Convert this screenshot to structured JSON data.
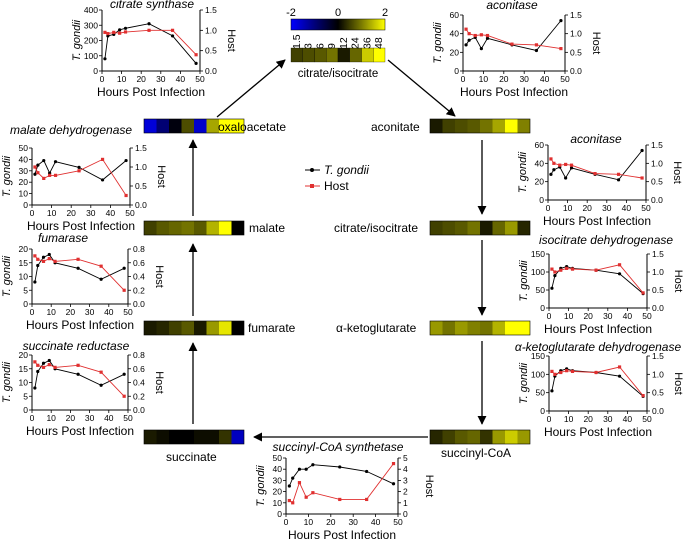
{
  "colors": {
    "tg": "#000000",
    "host": "#e03030",
    "axis": "#000000"
  },
  "colorbar": {
    "tick_labels": [
      "-2",
      "0",
      "2"
    ],
    "range": [
      -2,
      2
    ],
    "hours": [
      "1.5",
      "3",
      "6",
      "9",
      "12",
      "24",
      "36",
      "48"
    ],
    "title": "citrate/isocitrate"
  },
  "legend": {
    "tg": "T. gondii",
    "host": "Host"
  },
  "common": {
    "xlabel": "Hours Post Infection",
    "ylabel_left": "T. gondii",
    "ylabel_right": "Host"
  },
  "metabolites": [
    {
      "id": "oxaloacetate",
      "label": "oxaloacetate",
      "values": [
        -1.7,
        -0.9,
        -0.1,
        0.6,
        -1.6,
        1.3,
        2.0,
        2.0
      ]
    },
    {
      "id": "aconitate",
      "label": "aconitate",
      "values": [
        0.2,
        0.5,
        0.6,
        0.7,
        0.9,
        1.3,
        2.0,
        1.0
      ]
    },
    {
      "id": "citrate-isocitrate",
      "label": "citrate/isocitrate",
      "values": [
        0.5,
        0.6,
        0.7,
        0.9,
        0.2,
        0.8,
        1.2,
        0.3
      ]
    },
    {
      "id": "malate",
      "label": "malate",
      "values": [
        0.5,
        0.7,
        0.8,
        0.9,
        0.7,
        1.4,
        2.0,
        0.0
      ]
    },
    {
      "id": "alpha-ketoglutarate",
      "label": "α-ketoglutarate",
      "values": [
        1.2,
        0.9,
        1.2,
        1.0,
        0.9,
        1.4,
        2.0,
        2.0
      ]
    },
    {
      "id": "fumarate",
      "label": "fumarate",
      "values": [
        0.2,
        0.3,
        0.5,
        0.7,
        0.2,
        1.2,
        1.8,
        0.0
      ]
    },
    {
      "id": "succinyl-coa",
      "label": "succinyl-CoA",
      "values": [
        0.3,
        0.5,
        0.7,
        0.8,
        0.4,
        1.2,
        1.6,
        1.2
      ]
    },
    {
      "id": "succinate",
      "label": "succinate",
      "values": [
        0.2,
        0.1,
        0.0,
        0.0,
        0.1,
        0.1,
        0.4,
        -1.5
      ]
    }
  ],
  "chart_data": [
    {
      "id": "citrate-synthase",
      "type": "line",
      "title": "citrate synthase",
      "xlabel": "Hours Post Infection",
      "ylabel": "T. gondii",
      "y2label": "Host",
      "xlim": [
        0,
        50
      ],
      "xticks": [
        "0",
        "10",
        "20",
        "30",
        "40",
        "50"
      ],
      "ylim": [
        0,
        400
      ],
      "yticks": [
        "0",
        "100",
        "200",
        "300",
        "400"
      ],
      "y2lim": [
        0,
        1.5
      ],
      "y2ticks": [
        "0.0",
        "0.5",
        "1.0",
        "1.5"
      ],
      "series": [
        {
          "name": "T. gondii",
          "x": [
            1.5,
            3,
            6,
            9,
            12,
            24,
            36,
            48
          ],
          "y": [
            80,
            230,
            240,
            270,
            280,
            310,
            230,
            50
          ]
        },
        {
          "name": "Host",
          "x": [
            1.5,
            3,
            6,
            9,
            12,
            24,
            36,
            48
          ],
          "y": [
            0.95,
            0.92,
            0.95,
            0.93,
            0.96,
            1.0,
            1.0,
            0.4
          ]
        }
      ]
    },
    {
      "id": "aconitase-top",
      "type": "line",
      "title": "aconitase",
      "xlabel": "Hours Post Infection",
      "ylabel": "T. gondii",
      "y2label": "Host",
      "xlim": [
        0,
        50
      ],
      "xticks": [
        "0",
        "10",
        "20",
        "30",
        "40",
        "50"
      ],
      "ylim": [
        0,
        60
      ],
      "yticks": [
        "0",
        "20",
        "40",
        "60"
      ],
      "y2lim": [
        0,
        1.5
      ],
      "y2ticks": [
        "0.0",
        "0.5",
        "1.0",
        "1.5"
      ],
      "series": [
        {
          "name": "T. gondii",
          "x": [
            1.5,
            3,
            6,
            9,
            12,
            24,
            36,
            48
          ],
          "y": [
            28,
            33,
            36,
            24,
            35,
            28,
            22,
            54
          ]
        },
        {
          "name": "Host",
          "x": [
            1.5,
            3,
            6,
            9,
            12,
            24,
            36,
            48
          ],
          "y": [
            1.12,
            1.0,
            0.95,
            0.97,
            0.95,
            0.72,
            0.7,
            0.6
          ]
        }
      ]
    },
    {
      "id": "aconitase-right",
      "type": "line",
      "title": "aconitase",
      "xlabel": "Hours Post Infection",
      "ylabel": "T. gondii",
      "y2label": "Host",
      "xlim": [
        0,
        50
      ],
      "xticks": [
        "0",
        "10",
        "20",
        "30",
        "40",
        "50"
      ],
      "ylim": [
        0,
        60
      ],
      "yticks": [
        "0",
        "20",
        "40",
        "60"
      ],
      "y2lim": [
        0,
        1.5
      ],
      "y2ticks": [
        "0.0",
        "0.5",
        "1.0",
        "1.5"
      ],
      "series": [
        {
          "name": "T. gondii",
          "x": [
            1.5,
            3,
            6,
            9,
            12,
            24,
            36,
            48
          ],
          "y": [
            28,
            33,
            36,
            24,
            35,
            28,
            22,
            54
          ]
        },
        {
          "name": "Host",
          "x": [
            1.5,
            3,
            6,
            9,
            12,
            24,
            36,
            48
          ],
          "y": [
            1.12,
            1.0,
            0.95,
            0.97,
            0.95,
            0.72,
            0.7,
            0.6
          ]
        }
      ]
    },
    {
      "id": "malate-dehydrogenase",
      "type": "line",
      "title": "malate dehydrogenase",
      "xlabel": "Hours Post Infection",
      "ylabel": "T. gondii",
      "y2label": "Host",
      "xlim": [
        0,
        50
      ],
      "xticks": [
        "0",
        "10",
        "20",
        "30",
        "40",
        "50"
      ],
      "ylim": [
        0,
        50
      ],
      "yticks": [
        "0",
        "10",
        "20",
        "30",
        "40",
        "50"
      ],
      "y2lim": [
        0,
        1.5
      ],
      "y2ticks": [
        "0.0",
        "0.5",
        "1.0",
        "1.5"
      ],
      "series": [
        {
          "name": "T. gondii",
          "x": [
            1.5,
            3,
            6,
            9,
            12,
            24,
            36,
            48
          ],
          "y": [
            27,
            35,
            39,
            28,
            38,
            33,
            22,
            39
          ]
        },
        {
          "name": "Host",
          "x": [
            1.5,
            3,
            6,
            9,
            12,
            24,
            36,
            48
          ],
          "y": [
            1.0,
            0.85,
            0.7,
            0.78,
            0.78,
            0.9,
            1.2,
            0.25
          ]
        }
      ]
    },
    {
      "id": "isocitrate-dehydrogenase",
      "type": "line",
      "title": "isocitrate dehydrogenase",
      "xlabel": "Hours Post Infection",
      "ylabel": "T. gondii",
      "y2label": "Host",
      "xlim": [
        0,
        50
      ],
      "xticks": [
        "0",
        "10",
        "20",
        "30",
        "40",
        "50"
      ],
      "ylim": [
        0,
        150
      ],
      "yticks": [
        "0",
        "50",
        "100",
        "150"
      ],
      "y2lim": [
        0,
        1.5
      ],
      "y2ticks": [
        "0.0",
        "0.5",
        "1.0",
        "1.5"
      ],
      "series": [
        {
          "name": "T. gondii",
          "x": [
            1.5,
            3,
            6,
            9,
            12,
            24,
            36,
            48
          ],
          "y": [
            55,
            90,
            110,
            115,
            110,
            105,
            95,
            40
          ]
        },
        {
          "name": "Host",
          "x": [
            1.5,
            3,
            6,
            9,
            12,
            24,
            36,
            48
          ],
          "y": [
            1.08,
            1.0,
            1.05,
            1.1,
            1.08,
            1.05,
            1.2,
            0.42
          ]
        }
      ]
    },
    {
      "id": "fumarase",
      "type": "line",
      "title": "fumarase",
      "xlabel": "Hours Post Infection",
      "ylabel": "T. gondii",
      "y2label": "Host",
      "xlim": [
        0,
        50
      ],
      "xticks": [
        "0",
        "10",
        "20",
        "30",
        "40",
        "50"
      ],
      "ylim": [
        0,
        20
      ],
      "yticks": [
        "0",
        "5",
        "10",
        "15",
        "20"
      ],
      "y2lim": [
        0,
        0.8
      ],
      "y2ticks": [
        "0.0",
        "0.2",
        "0.4",
        "0.6",
        "0.8"
      ],
      "series": [
        {
          "name": "T. gondii",
          "x": [
            1.5,
            3,
            6,
            9,
            12,
            24,
            36,
            48
          ],
          "y": [
            8,
            14,
            17,
            18,
            15,
            13,
            9,
            13
          ]
        },
        {
          "name": "Host",
          "x": [
            1.5,
            3,
            6,
            9,
            12,
            24,
            36,
            48
          ],
          "y": [
            0.7,
            0.65,
            0.62,
            0.66,
            0.62,
            0.65,
            0.55,
            0.2
          ]
        }
      ]
    },
    {
      "id": "alpha-ketoglutarate-dehydrogenase",
      "type": "line",
      "title": "α-ketoglutarate dehydrogenase",
      "xlabel": "Hours Post Infection",
      "ylabel": "T. gondii",
      "y2label": "Host",
      "xlim": [
        0,
        50
      ],
      "xticks": [
        "0",
        "10",
        "20",
        "30",
        "40",
        "50"
      ],
      "ylim": [
        0,
        150
      ],
      "yticks": [
        "0",
        "50",
        "100",
        "150"
      ],
      "y2lim": [
        0,
        1.5
      ],
      "y2ticks": [
        "0.0",
        "0.5",
        "1.0",
        "1.5"
      ],
      "series": [
        {
          "name": "T. gondii",
          "x": [
            1.5,
            3,
            6,
            9,
            12,
            24,
            36,
            48
          ],
          "y": [
            55,
            95,
            110,
            115,
            110,
            105,
            95,
            40
          ]
        },
        {
          "name": "Host",
          "x": [
            1.5,
            3,
            6,
            9,
            12,
            24,
            36,
            48
          ],
          "y": [
            1.08,
            1.0,
            1.05,
            1.1,
            1.08,
            1.05,
            1.2,
            0.42
          ]
        }
      ]
    },
    {
      "id": "succinate-reductase",
      "type": "line",
      "title": "succinate reductase",
      "xlabel": "Hours Post Infection",
      "ylabel": "T. gondii",
      "y2label": "Host",
      "xlim": [
        0,
        50
      ],
      "xticks": [
        "0",
        "10",
        "20",
        "30",
        "40",
        "50"
      ],
      "ylim": [
        0,
        20
      ],
      "yticks": [
        "0",
        "5",
        "10",
        "15",
        "20"
      ],
      "y2lim": [
        0,
        0.8
      ],
      "y2ticks": [
        "0.0",
        "0.2",
        "0.4",
        "0.6",
        "0.8"
      ],
      "series": [
        {
          "name": "T. gondii",
          "x": [
            1.5,
            3,
            6,
            9,
            12,
            24,
            36,
            48
          ],
          "y": [
            8,
            14,
            17,
            18,
            15,
            13,
            9,
            13
          ]
        },
        {
          "name": "Host",
          "x": [
            1.5,
            3,
            6,
            9,
            12,
            24,
            36,
            48
          ],
          "y": [
            0.7,
            0.65,
            0.62,
            0.66,
            0.62,
            0.65,
            0.55,
            0.2
          ]
        }
      ]
    },
    {
      "id": "succinyl-coa-synthetase",
      "type": "line",
      "title": "succinyl-CoA synthetase",
      "xlabel": "Hours Post Infection",
      "ylabel": "T. gondii",
      "y2label": "Host",
      "xlim": [
        0,
        50
      ],
      "xticks": [
        "0",
        "10",
        "20",
        "30",
        "40",
        "50"
      ],
      "ylim": [
        0,
        50
      ],
      "yticks": [
        "0",
        "10",
        "20",
        "30",
        "40",
        "50"
      ],
      "y2lim": [
        0,
        5
      ],
      "y2ticks": [
        "0",
        "1",
        "2",
        "3",
        "4",
        "5"
      ],
      "series": [
        {
          "name": "T. gondii",
          "x": [
            1.5,
            3,
            6,
            9,
            12,
            24,
            36,
            48
          ],
          "y": [
            25,
            32,
            40,
            40,
            44,
            42,
            38,
            27
          ]
        },
        {
          "name": "Host",
          "x": [
            1.5,
            3,
            6,
            9,
            12,
            24,
            36,
            48
          ],
          "y": [
            1.2,
            1.0,
            2.8,
            1.5,
            1.9,
            1.3,
            1.3,
            4.5
          ]
        }
      ]
    }
  ]
}
